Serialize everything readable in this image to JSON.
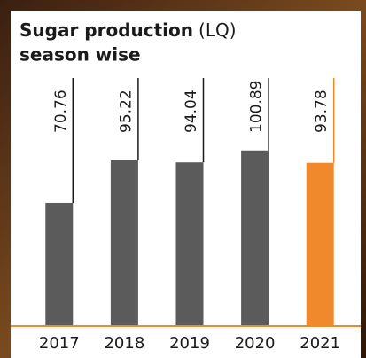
{
  "chart_data": {
    "type": "bar",
    "title": "Sugar production",
    "title_unit": "(LQ)",
    "subtitle": "season wise",
    "categories": [
      "2017",
      "2018",
      "2019",
      "2020",
      "2021"
    ],
    "values": [
      70.76,
      95.22,
      94.04,
      100.89,
      93.78
    ],
    "colors": [
      "#5b5b5b",
      "#5b5b5b",
      "#5b5b5b",
      "#5b5b5b",
      "#f0892b"
    ],
    "axis_color": "#f0892b"
  }
}
